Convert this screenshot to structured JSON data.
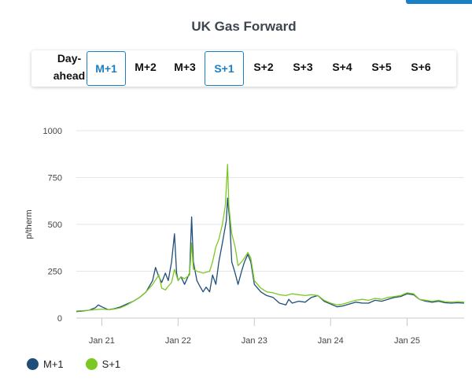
{
  "header": {
    "title": "UK Gas Forward"
  },
  "tabs": [
    {
      "label": "Day-ahead",
      "active": false
    },
    {
      "label": "M+1",
      "active": true
    },
    {
      "label": "M+2",
      "active": false
    },
    {
      "label": "M+3",
      "active": false
    },
    {
      "label": "S+1",
      "active": true
    },
    {
      "label": "S+2",
      "active": false
    },
    {
      "label": "S+3",
      "active": false
    },
    {
      "label": "S+4",
      "active": false
    },
    {
      "label": "S+5",
      "active": false
    },
    {
      "label": "S+6",
      "active": false
    }
  ],
  "chart_data": {
    "type": "line",
    "ylabel": "p/therm",
    "ylim": [
      0,
      1000
    ],
    "yticks": [
      "0",
      "250",
      "500",
      "750",
      "1000"
    ],
    "xlim": [
      "2020-09-01",
      "2025-10-01"
    ],
    "xticks": [
      {
        "date": "2021-01-01",
        "label": "Jan 21"
      },
      {
        "date": "2022-01-01",
        "label": "Jan 22"
      },
      {
        "date": "2023-01-01",
        "label": "Jan 23"
      },
      {
        "date": "2024-01-01",
        "label": "Jan 24"
      },
      {
        "date": "2025-01-01",
        "label": "Jan 25"
      }
    ],
    "grid": true,
    "legend_position": "bottom-left",
    "series": [
      {
        "name": "M+1",
        "color": "#1f4e79",
        "points": [
          [
            "2020-09-01",
            35
          ],
          [
            "2020-10-01",
            38
          ],
          [
            "2020-11-01",
            42
          ],
          [
            "2020-12-01",
            55
          ],
          [
            "2020-12-15",
            70
          ],
          [
            "2021-01-01",
            60
          ],
          [
            "2021-02-01",
            45
          ],
          [
            "2021-03-01",
            50
          ],
          [
            "2021-04-01",
            60
          ],
          [
            "2021-05-01",
            75
          ],
          [
            "2021-06-01",
            90
          ],
          [
            "2021-07-01",
            110
          ],
          [
            "2021-08-01",
            140
          ],
          [
            "2021-09-01",
            200
          ],
          [
            "2021-09-15",
            270
          ],
          [
            "2021-10-01",
            220
          ],
          [
            "2021-10-15",
            190
          ],
          [
            "2021-11-01",
            240
          ],
          [
            "2021-11-15",
            200
          ],
          [
            "2021-12-01",
            300
          ],
          [
            "2021-12-15",
            450
          ],
          [
            "2021-12-25",
            240
          ],
          [
            "2022-01-01",
            200
          ],
          [
            "2022-01-15",
            220
          ],
          [
            "2022-02-01",
            180
          ],
          [
            "2022-02-25",
            240
          ],
          [
            "2022-03-07",
            540
          ],
          [
            "2022-03-15",
            300
          ],
          [
            "2022-04-01",
            200
          ],
          [
            "2022-04-15",
            170
          ],
          [
            "2022-05-01",
            140
          ],
          [
            "2022-05-15",
            165
          ],
          [
            "2022-06-01",
            140
          ],
          [
            "2022-06-15",
            230
          ],
          [
            "2022-07-01",
            180
          ],
          [
            "2022-07-15",
            300
          ],
          [
            "2022-08-01",
            400
          ],
          [
            "2022-08-20",
            520
          ],
          [
            "2022-08-26",
            640
          ],
          [
            "2022-09-05",
            520
          ],
          [
            "2022-09-15",
            300
          ],
          [
            "2022-10-01",
            240
          ],
          [
            "2022-10-15",
            180
          ],
          [
            "2022-11-01",
            250
          ],
          [
            "2022-11-15",
            300
          ],
          [
            "2022-12-01",
            340
          ],
          [
            "2022-12-15",
            300
          ],
          [
            "2023-01-01",
            180
          ],
          [
            "2023-02-01",
            140
          ],
          [
            "2023-03-01",
            120
          ],
          [
            "2023-04-01",
            110
          ],
          [
            "2023-05-01",
            80
          ],
          [
            "2023-06-01",
            70
          ],
          [
            "2023-06-15",
            100
          ],
          [
            "2023-07-01",
            80
          ],
          [
            "2023-08-01",
            90
          ],
          [
            "2023-09-01",
            85
          ],
          [
            "2023-10-01",
            110
          ],
          [
            "2023-11-01",
            120
          ],
          [
            "2023-12-01",
            90
          ],
          [
            "2024-01-01",
            75
          ],
          [
            "2024-02-01",
            60
          ],
          [
            "2024-03-01",
            65
          ],
          [
            "2024-04-01",
            75
          ],
          [
            "2024-05-01",
            85
          ],
          [
            "2024-06-01",
            80
          ],
          [
            "2024-07-01",
            80
          ],
          [
            "2024-08-01",
            95
          ],
          [
            "2024-09-01",
            90
          ],
          [
            "2024-10-01",
            100
          ],
          [
            "2024-11-01",
            110
          ],
          [
            "2024-12-01",
            115
          ],
          [
            "2025-01-01",
            130
          ],
          [
            "2025-02-01",
            125
          ],
          [
            "2025-03-01",
            100
          ],
          [
            "2025-04-01",
            90
          ],
          [
            "2025-05-01",
            85
          ],
          [
            "2025-06-01",
            90
          ],
          [
            "2025-07-01",
            82
          ],
          [
            "2025-08-01",
            80
          ],
          [
            "2025-09-01",
            82
          ],
          [
            "2025-10-01",
            80
          ]
        ]
      },
      {
        "name": "S+1",
        "color": "#7cc823",
        "points": [
          [
            "2020-09-01",
            38
          ],
          [
            "2020-10-01",
            40
          ],
          [
            "2020-11-01",
            42
          ],
          [
            "2020-12-01",
            45
          ],
          [
            "2021-01-01",
            48
          ],
          [
            "2021-02-01",
            45
          ],
          [
            "2021-03-01",
            48
          ],
          [
            "2021-04-01",
            55
          ],
          [
            "2021-05-01",
            70
          ],
          [
            "2021-06-01",
            90
          ],
          [
            "2021-07-01",
            110
          ],
          [
            "2021-08-01",
            140
          ],
          [
            "2021-09-01",
            180
          ],
          [
            "2021-10-01",
            230
          ],
          [
            "2021-10-15",
            160
          ],
          [
            "2021-11-01",
            150
          ],
          [
            "2021-11-15",
            170
          ],
          [
            "2021-12-01",
            190
          ],
          [
            "2021-12-15",
            260
          ],
          [
            "2022-01-01",
            200
          ],
          [
            "2022-01-15",
            220
          ],
          [
            "2022-02-01",
            210
          ],
          [
            "2022-02-25",
            230
          ],
          [
            "2022-03-07",
            400
          ],
          [
            "2022-03-15",
            260
          ],
          [
            "2022-04-01",
            250
          ],
          [
            "2022-05-01",
            240
          ],
          [
            "2022-06-01",
            250
          ],
          [
            "2022-06-15",
            300
          ],
          [
            "2022-07-01",
            380
          ],
          [
            "2022-07-15",
            420
          ],
          [
            "2022-08-01",
            500
          ],
          [
            "2022-08-15",
            600
          ],
          [
            "2022-08-26",
            820
          ],
          [
            "2022-09-01",
            600
          ],
          [
            "2022-09-15",
            450
          ],
          [
            "2022-10-01",
            380
          ],
          [
            "2022-10-15",
            280
          ],
          [
            "2022-11-01",
            300
          ],
          [
            "2022-11-15",
            320
          ],
          [
            "2022-12-01",
            350
          ],
          [
            "2022-12-15",
            320
          ],
          [
            "2023-01-01",
            200
          ],
          [
            "2023-02-01",
            160
          ],
          [
            "2023-03-01",
            140
          ],
          [
            "2023-04-01",
            135
          ],
          [
            "2023-05-01",
            125
          ],
          [
            "2023-06-01",
            120
          ],
          [
            "2023-07-01",
            130
          ],
          [
            "2023-08-01",
            125
          ],
          [
            "2023-09-01",
            120
          ],
          [
            "2023-10-01",
            125
          ],
          [
            "2023-11-01",
            120
          ],
          [
            "2023-12-01",
            95
          ],
          [
            "2024-01-01",
            80
          ],
          [
            "2024-02-01",
            70
          ],
          [
            "2024-03-01",
            75
          ],
          [
            "2024-04-01",
            85
          ],
          [
            "2024-05-01",
            95
          ],
          [
            "2024-06-01",
            100
          ],
          [
            "2024-07-01",
            95
          ],
          [
            "2024-08-01",
            105
          ],
          [
            "2024-09-01",
            100
          ],
          [
            "2024-10-01",
            110
          ],
          [
            "2024-11-01",
            115
          ],
          [
            "2024-12-01",
            120
          ],
          [
            "2025-01-01",
            135
          ],
          [
            "2025-02-01",
            130
          ],
          [
            "2025-03-01",
            100
          ],
          [
            "2025-04-01",
            95
          ],
          [
            "2025-05-01",
            90
          ],
          [
            "2025-06-01",
            95
          ],
          [
            "2025-07-01",
            88
          ],
          [
            "2025-08-01",
            85
          ],
          [
            "2025-09-01",
            88
          ],
          [
            "2025-10-01",
            85
          ]
        ]
      }
    ]
  }
}
